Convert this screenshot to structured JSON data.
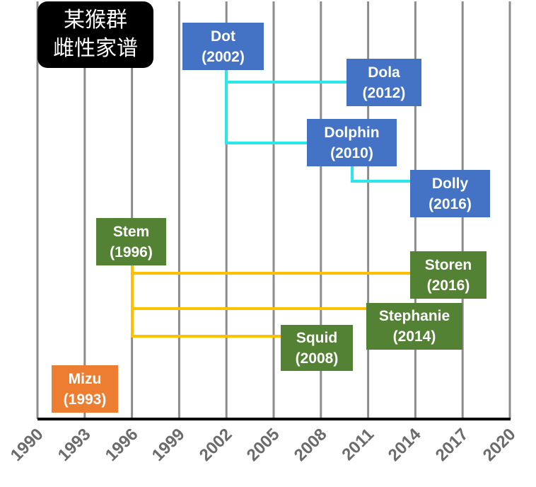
{
  "title": {
    "line1": "某猴群",
    "line2": "雌性家谱"
  },
  "axis": {
    "ticks": [
      "1990",
      "1993",
      "1996",
      "1999",
      "2002",
      "2005",
      "2008",
      "2011",
      "2014",
      "2017",
      "2020"
    ]
  },
  "colors": {
    "dot_family": "#4472c4",
    "stem_family": "#548235",
    "mizu": "#ed7d31",
    "dot_links": "#2be8e8",
    "stem_links": "#ffc000",
    "gridline": "#8c8c8c"
  },
  "individuals": [
    {
      "id": "dot",
      "name": "Dot",
      "year": "(2002)",
      "family": "dot_family"
    },
    {
      "id": "dola",
      "name": "Dola",
      "year": "(2012)",
      "family": "dot_family",
      "mother": "dot"
    },
    {
      "id": "dolphin",
      "name": "Dolphin",
      "year": "(2010)",
      "family": "dot_family",
      "mother": "dot"
    },
    {
      "id": "dolly",
      "name": "Dolly",
      "year": "(2016)",
      "family": "dot_family",
      "mother": "dolphin"
    },
    {
      "id": "stem",
      "name": "Stem",
      "year": "(1996)",
      "family": "stem_family"
    },
    {
      "id": "storen",
      "name": "Storen",
      "year": "(2016)",
      "family": "stem_family",
      "mother": "stem"
    },
    {
      "id": "stephanie",
      "name": "Stephanie",
      "year": "(2014)",
      "family": "stem_family",
      "mother": "stem"
    },
    {
      "id": "squid",
      "name": "Squid",
      "year": "(2008)",
      "family": "stem_family",
      "mother": "stem"
    },
    {
      "id": "mizu",
      "name": "Mizu",
      "year": "(1993)",
      "family": "mizu"
    }
  ]
}
